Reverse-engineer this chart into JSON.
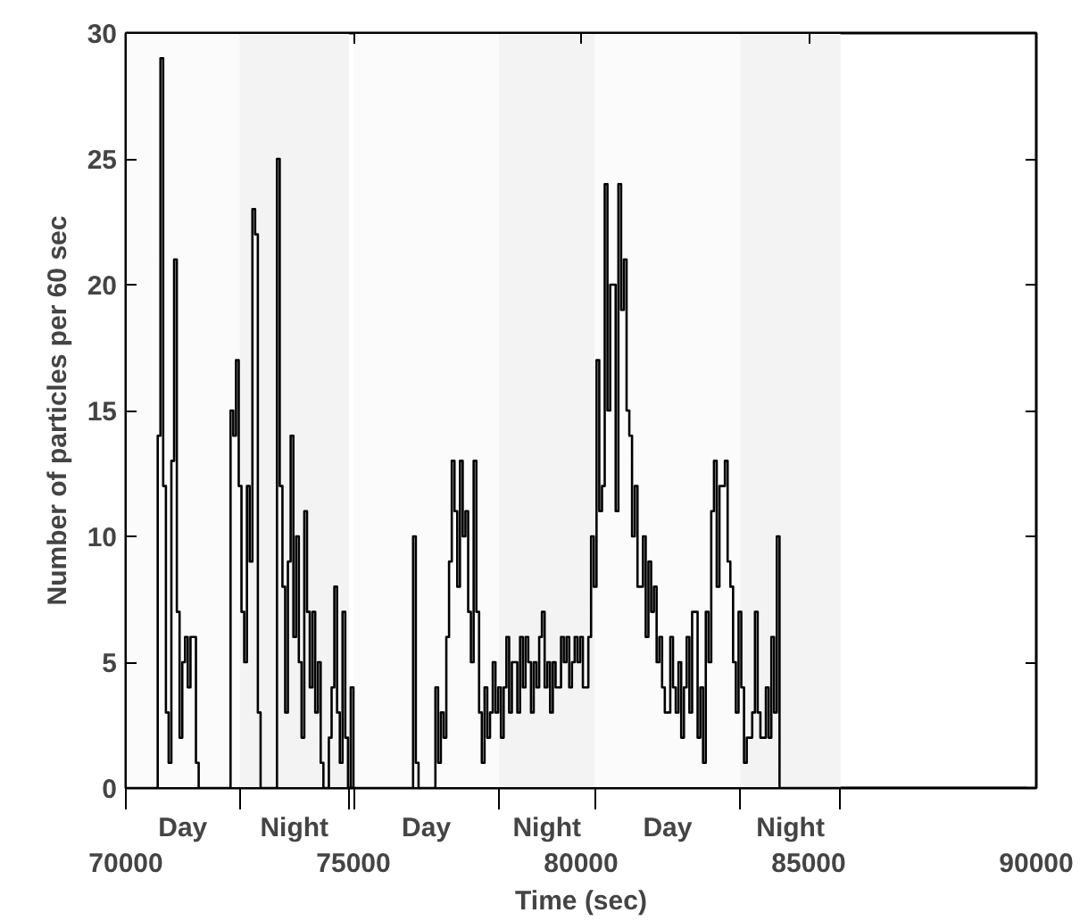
{
  "chart_data": {
    "type": "step",
    "xlabel": "Time (sec)",
    "ylabel": "Number of particles per 60 sec",
    "xlim": [
      70000,
      90000
    ],
    "xticks": [
      70000,
      75000,
      80000,
      85000,
      90000
    ],
    "ylim": [
      0,
      30
    ],
    "yticks": [
      0,
      5,
      10,
      15,
      20,
      25,
      30
    ],
    "bands": [
      {
        "axis": "x",
        "from": 70000,
        "to": 72500,
        "label": "Day",
        "color": "#fbfbfb"
      },
      {
        "axis": "x",
        "from": 72500,
        "to": 74900,
        "label": "Night",
        "color": "#f3f3f3"
      },
      {
        "axis": "x",
        "from": 75000,
        "to": 78200,
        "label": "Day",
        "color": "#fbfbfb"
      },
      {
        "axis": "x",
        "from": 78200,
        "to": 80300,
        "label": "Night",
        "color": "#f3f3f3"
      },
      {
        "axis": "x",
        "from": 80300,
        "to": 83500,
        "label": "Day",
        "color": "#fbfbfb"
      },
      {
        "axis": "x",
        "from": 83500,
        "to": 85700,
        "label": "Night",
        "color": "#f3f3f3"
      }
    ],
    "series": [
      {
        "color": "#000000",
        "x": [
          70000,
          70700,
          70760,
          70820,
          70880,
          70940,
          71000,
          71060,
          71120,
          71180,
          71240,
          71300,
          71360,
          71420,
          71480,
          71540,
          71600,
          72300,
          72360,
          72420,
          72480,
          72540,
          72600,
          72660,
          72720,
          72780,
          72840,
          72900,
          72960,
          73260,
          73320,
          73380,
          73440,
          73500,
          73560,
          73620,
          73680,
          73740,
          73800,
          73860,
          73920,
          73980,
          74040,
          74100,
          74160,
          74220,
          74280,
          74340,
          74460,
          74520,
          74580,
          74640,
          74700,
          74760,
          74820,
          74880,
          74940,
          75000,
          76250,
          76310,
          76370,
          76430,
          76800,
          76860,
          76920,
          76980,
          77040,
          77100,
          77160,
          77220,
          77280,
          77340,
          77400,
          77460,
          77520,
          77580,
          77640,
          77700,
          77760,
          77820,
          77880,
          77940,
          78000,
          78060,
          78120,
          78180,
          78240,
          78300,
          78360,
          78420,
          78480,
          78540,
          78600,
          78660,
          78720,
          78780,
          78840,
          78900,
          78960,
          79020,
          79080,
          79140,
          79200,
          79260,
          79320,
          79380,
          79440,
          79560,
          79620,
          79680,
          79740,
          79800,
          79860,
          79920,
          79980,
          80040,
          80160,
          80220,
          80280,
          80340,
          80400,
          80460,
          80520,
          80580,
          80640,
          80760,
          80820,
          80880,
          80940,
          81000,
          81060,
          81120,
          81180,
          81240,
          81360,
          81420,
          81480,
          81540,
          81600,
          81660,
          81720,
          81780,
          81840,
          81960,
          82020,
          82080,
          82140,
          82200,
          82260,
          82320,
          82380,
          82440,
          82560,
          82620,
          82680,
          82740,
          82800,
          82860,
          82920,
          82980,
          83040,
          83160,
          83220,
          83280,
          83340,
          83400,
          83460,
          83520,
          83580,
          83640,
          83760,
          83820,
          83880,
          83940,
          84060,
          84120,
          84180,
          84240,
          84300,
          84360,
          89800
        ],
        "values": [
          0,
          14,
          29,
          12,
          3,
          1,
          13,
          21,
          7,
          2,
          5,
          6,
          4,
          6,
          6,
          1,
          0,
          15,
          14,
          17,
          12,
          7,
          5,
          12,
          9,
          23,
          22,
          3,
          0,
          0,
          25,
          12,
          8,
          3,
          9,
          14,
          6,
          10,
          5,
          2,
          11,
          7,
          4,
          7,
          3,
          5,
          1,
          0,
          2,
          4,
          8,
          3,
          1,
          7,
          2,
          0,
          4,
          0,
          0,
          10,
          1,
          0,
          4,
          1,
          3,
          2,
          6,
          9,
          13,
          11,
          8,
          13,
          10,
          11,
          7,
          5,
          13,
          7,
          3,
          1,
          4,
          2,
          3,
          5,
          3,
          4,
          2,
          4,
          6,
          3,
          5,
          5,
          3,
          6,
          4,
          6,
          5,
          3,
          5,
          4,
          6,
          7,
          4,
          5,
          3,
          5,
          4,
          6,
          5,
          6,
          4,
          5,
          6,
          5,
          6,
          4,
          6,
          10,
          8,
          17,
          11,
          12,
          24,
          15,
          20,
          11,
          24,
          19,
          21,
          15,
          14,
          10,
          12,
          8,
          10,
          6,
          9,
          7,
          8,
          5,
          6,
          4,
          3,
          6,
          4,
          3,
          5,
          2,
          4,
          6,
          3,
          7,
          2,
          4,
          1,
          7,
          5,
          11,
          13,
          8,
          12,
          13,
          9,
          8,
          5,
          3,
          7,
          4,
          1,
          2,
          3,
          7,
          3,
          2,
          4,
          2,
          6,
          3,
          10,
          0,
          0
        ]
      }
    ]
  }
}
